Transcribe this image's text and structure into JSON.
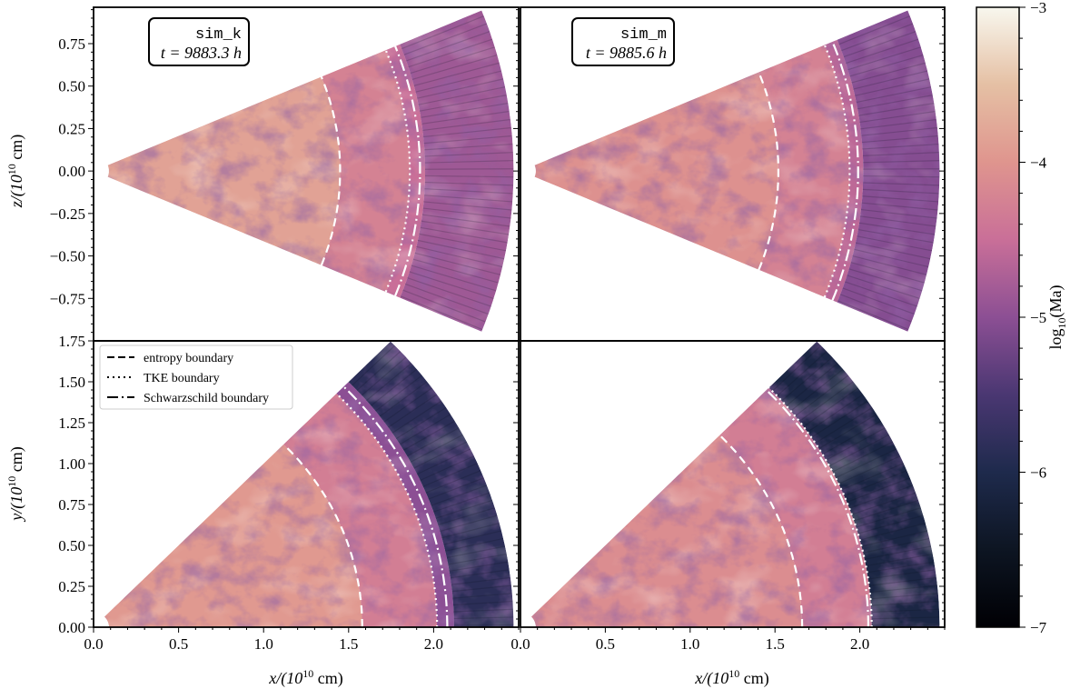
{
  "chart_data": {
    "type": "heatmap",
    "description_quantity": "log10(Ma)",
    "xlabel": {
      "base": "x/(10",
      "exp": "10",
      "unit": " cm)"
    },
    "ylabel_top": {
      "base": "z/(10",
      "exp": "10",
      "unit": " cm)"
    },
    "ylabel_bottom": {
      "base": "y/(10",
      "exp": "10",
      "unit": " cm)"
    },
    "xlim": [
      0,
      2.5
    ],
    "ylim_top": [
      -1.0,
      0.964
    ],
    "ylim_bottom": [
      0,
      1.75
    ],
    "xticks": [
      "0.0",
      "0.5",
      "1.0",
      "1.5",
      "2.0"
    ],
    "xtick_values": [
      0,
      0.5,
      1.0,
      1.5,
      2.0
    ],
    "yticks_top": [
      "−0.75",
      "−0.50",
      "−0.25",
      "0.00",
      "0.25",
      "0.50",
      "0.75"
    ],
    "ytick_values_top": [
      -0.75,
      -0.5,
      -0.25,
      0,
      0.25,
      0.5,
      0.75
    ],
    "yticks_bottom": [
      "0.00",
      "0.25",
      "0.50",
      "0.75",
      "1.00",
      "1.25",
      "1.50",
      "1.75"
    ],
    "ytick_values_bottom": [
      0,
      0.25,
      0.5,
      0.75,
      1.0,
      1.25,
      1.5,
      1.75
    ],
    "legend": {
      "placement": "upper-left of bottom-left panel",
      "entries": [
        {
          "label": "entropy boundary",
          "style": "dashed"
        },
        {
          "label": "TKE boundary",
          "style": "dotted"
        },
        {
          "label": "Schwarzschild boundary",
          "style": "dashdot"
        }
      ]
    },
    "colorbar": {
      "label": {
        "base": "log",
        "sub": "10",
        "rest": "(Ma)"
      },
      "range": [
        -7,
        -3
      ],
      "ticks": [
        "−3",
        "−4",
        "−5",
        "−6",
        "−7"
      ],
      "tick_values": [
        -3,
        -4,
        -5,
        -6,
        -7
      ],
      "stops": [
        {
          "v": -7.0,
          "c": "#000004"
        },
        {
          "v": -6.5,
          "c": "#0d1522"
        },
        {
          "v": -6.0,
          "c": "#1e2a4c"
        },
        {
          "v": -5.5,
          "c": "#4a3772"
        },
        {
          "v": -5.0,
          "c": "#8c4f94"
        },
        {
          "v": -4.5,
          "c": "#c96f98"
        },
        {
          "v": -4.0,
          "c": "#df958e"
        },
        {
          "v": -3.5,
          "c": "#e5c0a4"
        },
        {
          "v": -3.0,
          "c": "#f8f7ee"
        }
      ]
    },
    "panels": [
      {
        "id": "top-left",
        "view": "meridional",
        "sim": "sim_k",
        "time": "t = 9883.3 h",
        "boundaries": {
          "entropy": 1.45,
          "tke": 1.86,
          "schwarzschild": 1.92
        },
        "zones": [
          {
            "r": [
              0.09,
              1.45
            ],
            "log_ma": -3.85
          },
          {
            "r": [
              1.45,
              1.86
            ],
            "log_ma": -4.25
          },
          {
            "r": [
              1.86,
              1.95
            ],
            "log_ma": -4.5
          },
          {
            "r": [
              1.95,
              2.47
            ],
            "log_ma": -4.85
          }
        ]
      },
      {
        "id": "top-right",
        "view": "meridional",
        "sim": "sim_m",
        "time": "t = 9885.6 h",
        "boundaries": {
          "entropy": 1.52,
          "tke": 1.94,
          "schwarzschild": 1.99
        },
        "zones": [
          {
            "r": [
              0.09,
              1.52
            ],
            "log_ma": -4.05
          },
          {
            "r": [
              1.52,
              1.94
            ],
            "log_ma": -4.25
          },
          {
            "r": [
              1.94,
              2.02
            ],
            "log_ma": -4.6
          },
          {
            "r": [
              2.02,
              2.47
            ],
            "log_ma": -5.05
          }
        ]
      },
      {
        "id": "bottom-left",
        "view": "equatorial",
        "boundaries": {
          "entropy": 1.58,
          "tke": 2.02,
          "schwarzschild": 2.08
        },
        "zones": [
          {
            "r": [
              0.09,
              1.58
            ],
            "log_ma": -3.95
          },
          {
            "r": [
              1.58,
              2.02
            ],
            "log_ma": -4.3
          },
          {
            "r": [
              2.02,
              2.12
            ],
            "log_ma": -5.0
          },
          {
            "r": [
              2.12,
              2.47
            ],
            "log_ma": -5.85
          }
        ]
      },
      {
        "id": "bottom-right",
        "view": "equatorial",
        "boundaries": {
          "entropy": 1.66,
          "tke": 2.07,
          "schwarzschild": 2.05
        },
        "zones": [
          {
            "r": [
              0.09,
              1.66
            ],
            "log_ma": -4.1
          },
          {
            "r": [
              1.66,
              2.07
            ],
            "log_ma": -4.3
          },
          {
            "r": [
              2.07,
              2.47
            ],
            "log_ma": -6.1
          }
        ]
      }
    ]
  }
}
